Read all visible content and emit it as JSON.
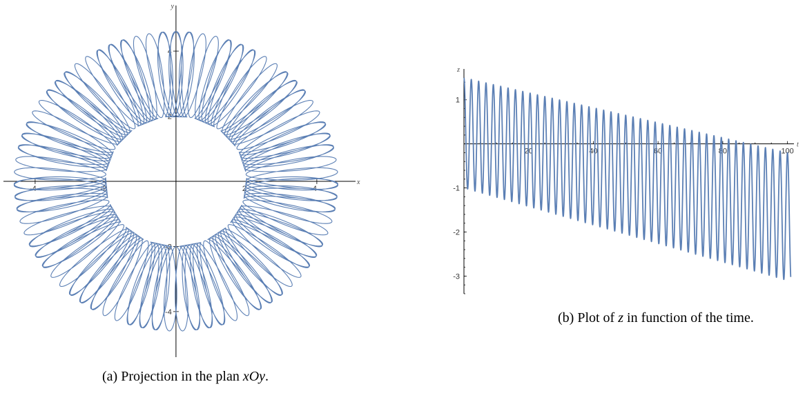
{
  "figures": [
    {
      "caption_prefix": "(a) Projection in the plan ",
      "caption_math": "xOy",
      "caption_suffix": "."
    },
    {
      "caption_prefix": "(b) Plot of ",
      "caption_math": "z",
      "caption_suffix": " in function of the time."
    }
  ],
  "chart_data": [
    {
      "type": "line",
      "title": "",
      "xlabel": "x",
      "ylabel": "y",
      "xlim": [
        -4.9,
        5.1
      ],
      "ylim": [
        -5.4,
        5.4
      ],
      "x_ticks": [
        -4,
        -2,
        2,
        4
      ],
      "x_tick_labels": [
        "-4",
        "-2",
        "2",
        "4"
      ],
      "y_ticks": [
        -4,
        -2,
        2,
        4
      ],
      "y_tick_labels": [
        "-4",
        "-2",
        "2",
        "4"
      ],
      "grid": false,
      "series": [
        {
          "description_points": "parametric closed curve: 15 petal lobes, each drawn as ~8 overlapping loops",
          "lobe_count": 15,
          "inner_radius": 2.0,
          "outer_radius": 4.6,
          "loops_per_lobe": 8,
          "color": "#5b7fb4"
        }
      ]
    },
    {
      "type": "line",
      "title": "",
      "xlabel": "t",
      "ylabel": "z",
      "xlim": [
        0,
        102
      ],
      "ylim": [
        -3.4,
        1.7
      ],
      "x_ticks": [
        20,
        40,
        60,
        80,
        100
      ],
      "x_tick_labels": [
        "20",
        "40",
        "60",
        "80",
        "100"
      ],
      "y_ticks": [
        -3,
        -2,
        -1,
        1
      ],
      "y_tick_labels": [
        "-3",
        "-2",
        "-1",
        "1"
      ],
      "grid": false,
      "series": [
        {
          "oscillations": 44,
          "upper_envelope": [
            [
              0,
              1.5
            ],
            [
              100,
              -0.2
            ]
          ],
          "lower_envelope": [
            [
              0,
              -1.0
            ],
            [
              100,
              -3.1
            ]
          ],
          "end_value": [
            101,
            -1.35
          ],
          "color": "#5b7fb4"
        }
      ]
    }
  ]
}
